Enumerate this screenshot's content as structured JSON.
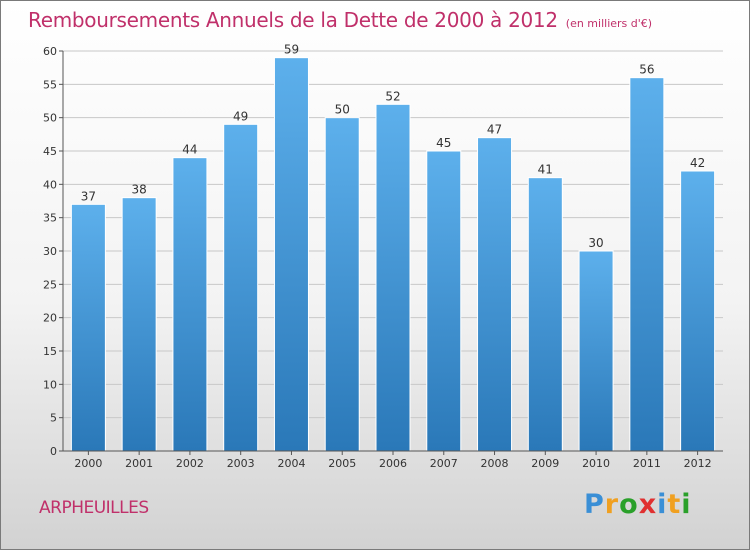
{
  "title": "Remboursements Annuels de la Dette de 2000 à 2012",
  "unit": "(en milliers d'€)",
  "commune": "ARPHEUILLES",
  "logo": {
    "letters": [
      "P",
      "r",
      "o",
      "x",
      "i",
      "t",
      "i"
    ],
    "colors": [
      "#3a8fd6",
      "#f0a020",
      "#2aa02a",
      "#e03030",
      "#3a8fd6",
      "#f0a020",
      "#2aa02a"
    ]
  },
  "colors": {
    "bar_top": "#5db0ec",
    "bar_bottom": "#2a78b8",
    "title": "#c0306a",
    "grid": "#c8c8c8"
  },
  "chart_data": {
    "type": "bar",
    "categories": [
      "2000",
      "2001",
      "2002",
      "2003",
      "2004",
      "2005",
      "2006",
      "2007",
      "2008",
      "2009",
      "2010",
      "2011",
      "2012"
    ],
    "values": [
      37,
      38,
      44,
      49,
      59,
      50,
      52,
      45,
      47,
      41,
      30,
      56,
      42
    ],
    "ylim": [
      0,
      60
    ],
    "yticks": [
      0,
      5,
      10,
      15,
      20,
      25,
      30,
      35,
      40,
      45,
      50,
      55,
      60
    ],
    "grid": true,
    "data_labels": true
  }
}
